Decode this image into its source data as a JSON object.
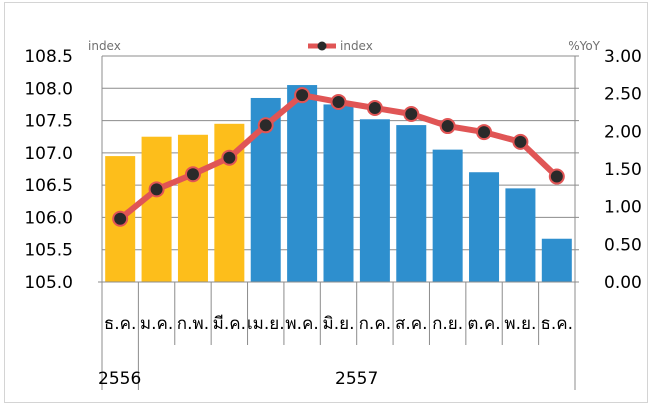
{
  "chart_data": {
    "type": "bar",
    "categories": [
      "ธ.ค.",
      "ม.ค.",
      "ก.พ.",
      "มี.ค.",
      "เม.ย.",
      "พ.ค.",
      "มิ.ย.",
      "ก.ค.",
      "ส.ค.",
      "ก.ย.",
      "ต.ค.",
      "พ.ย.",
      "ธ.ค."
    ],
    "year_groups": [
      {
        "label": "2556",
        "start": 0,
        "end": 0
      },
      {
        "label": "2557",
        "start": 1,
        "end": 12
      }
    ],
    "series": [
      {
        "name": "index",
        "kind": "bar",
        "axis": "left",
        "values": [
          106.95,
          107.25,
          107.28,
          107.45,
          107.85,
          108.05,
          107.75,
          107.52,
          107.43,
          107.05,
          106.7,
          106.45,
          105.67
        ],
        "colors": [
          "#FDBE1B",
          "#FDBE1B",
          "#FDBE1B",
          "#FDBE1B",
          "#2E8FCE",
          "#2E8FCE",
          "#2E8FCE",
          "#2E8FCE",
          "#2E8FCE",
          "#2E8FCE",
          "#2E8FCE",
          "#2E8FCE",
          "#2E8FCE"
        ]
      },
      {
        "name": "index",
        "kind": "line",
        "axis": "right",
        "values": [
          0.84,
          1.23,
          1.43,
          1.65,
          2.08,
          2.48,
          2.39,
          2.31,
          2.23,
          2.07,
          1.99,
          1.86,
          1.4
        ],
        "line_color": "#E05555",
        "marker_color": "#2A2A2A"
      }
    ],
    "y_left": {
      "label": "index",
      "ylim": [
        105.0,
        108.5
      ],
      "ticks": [
        "105.0",
        "105.5",
        "106.0",
        "106.5",
        "107.0",
        "107.5",
        "108.0",
        "108.5"
      ]
    },
    "y_right": {
      "label": "%YoY",
      "ylim": [
        0,
        3.0
      ],
      "ticks": [
        "0.00",
        "0.50",
        "1.00",
        "1.50",
        "2.00",
        "2.50",
        "3.00"
      ]
    },
    "legend": {
      "label": "index",
      "position": "top-center"
    },
    "grid": true
  }
}
